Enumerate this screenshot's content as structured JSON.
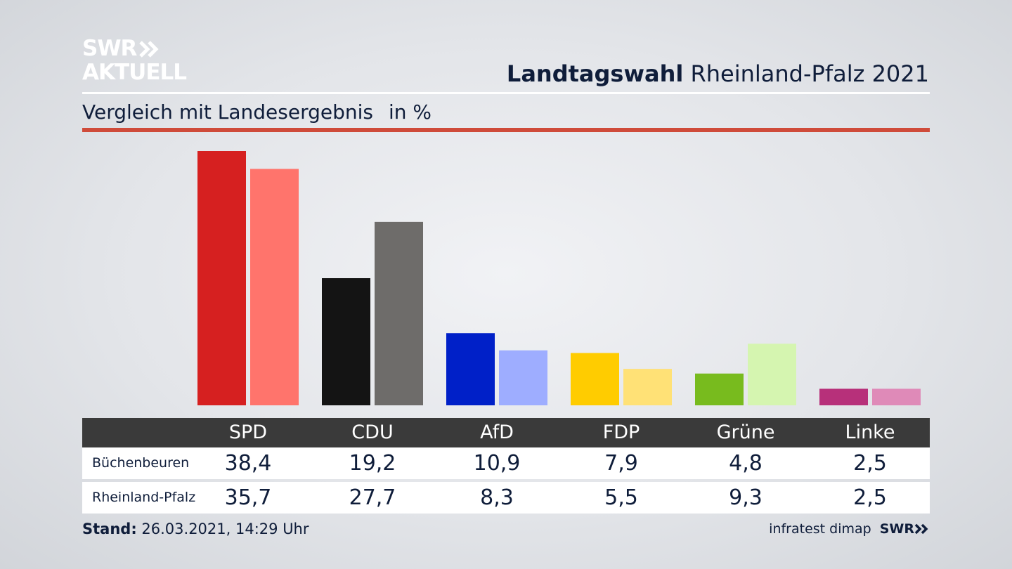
{
  "logo": {
    "line1": "SWR",
    "line2": "AKTUELL",
    "chevron_icon": "double-chevron-right-icon"
  },
  "header": {
    "title_bold": "Landtagswahl",
    "title_rest": "Rheinland-Pfalz 2021"
  },
  "subtitle": {
    "text": "Vergleich mit Landesergebnis",
    "unit": "in %"
  },
  "colors": {
    "accent_rule": "#cf4b3a",
    "table_header_bg": "#3a3a3a",
    "party_primary": [
      "#d62020",
      "#141414",
      "#0020c8",
      "#ffcc00",
      "#78bb1e",
      "#b7307a"
    ],
    "party_secondary": [
      "#ff746c",
      "#6e6c6a",
      "#9eadff",
      "#ffe176",
      "#d5f5b0",
      "#df8ab8"
    ]
  },
  "chart_data": {
    "type": "bar",
    "categories": [
      "SPD",
      "CDU",
      "AfD",
      "FDP",
      "Grüne",
      "Linke"
    ],
    "series": [
      {
        "name": "Büchenbeuren",
        "values": [
          38.4,
          19.2,
          10.9,
          7.9,
          4.8,
          2.5
        ]
      },
      {
        "name": "Rheinland-Pfalz",
        "values": [
          35.7,
          27.7,
          8.3,
          5.5,
          9.3,
          2.5
        ]
      }
    ],
    "grid": false,
    "legend": "table below chart"
  },
  "table": {
    "headers": [
      "SPD",
      "CDU",
      "AfD",
      "FDP",
      "Grüne",
      "Linke"
    ],
    "rows": [
      {
        "label": "Büchenbeuren",
        "values": [
          "38,4",
          "19,2",
          "10,9",
          "7,9",
          "4,8",
          "2,5"
        ]
      },
      {
        "label": "Rheinland-Pfalz",
        "values": [
          "35,7",
          "27,7",
          "8,3",
          "5,5",
          "9,3",
          "2,5"
        ]
      }
    ]
  },
  "footer": {
    "stand_label": "Stand:",
    "stand_value": "26.03.2021, 14:29 Uhr",
    "source": "infratest dimap",
    "brand": "SWR",
    "brand_icon": "double-chevron-right-icon"
  }
}
